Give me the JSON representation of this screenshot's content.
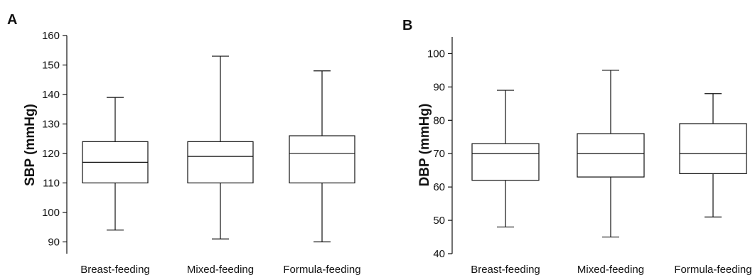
{
  "chart_data": [
    {
      "type": "box",
      "panel_label": "A",
      "ylabel": "SBP (mmHg)",
      "ylim": [
        86,
        160
      ],
      "yticks": [
        90,
        100,
        110,
        120,
        130,
        140,
        150,
        160
      ],
      "categories": [
        "Breast-feeding",
        "Mixed-feeding",
        "Formula-feeding"
      ],
      "boxes": [
        {
          "min": 94,
          "q1": 110,
          "median": 117,
          "q3": 124,
          "max": 139
        },
        {
          "min": 91,
          "q1": 110,
          "median": 119,
          "q3": 124,
          "max": 153
        },
        {
          "min": 90,
          "q1": 110,
          "median": 120,
          "q3": 126,
          "max": 148
        }
      ],
      "grid": false
    },
    {
      "type": "box",
      "panel_label": "B",
      "ylabel": "DBP (mmHg)",
      "ylim": [
        40,
        105
      ],
      "yticks": [
        40,
        50,
        60,
        70,
        80,
        90,
        100
      ],
      "categories": [
        "Breast-feeding",
        "Mixed-feeding",
        "Formula-feeding"
      ],
      "boxes": [
        {
          "min": 48,
          "q1": 62,
          "median": 70,
          "q3": 73,
          "max": 89
        },
        {
          "min": 45,
          "q1": 63,
          "median": 70,
          "q3": 76,
          "max": 95
        },
        {
          "min": 51,
          "q1": 64,
          "median": 70,
          "q3": 79,
          "max": 88
        }
      ],
      "grid": false
    }
  ]
}
